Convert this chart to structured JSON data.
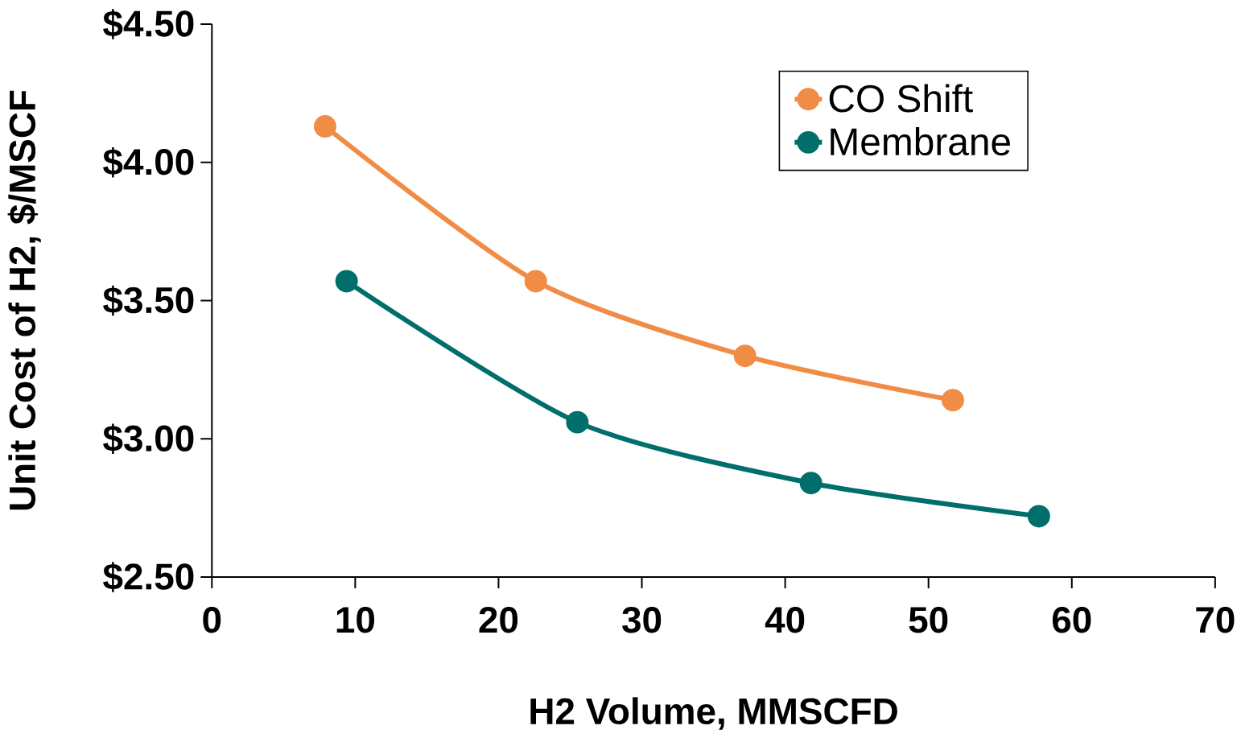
{
  "chart_data": {
    "type": "line",
    "xlabel": "H2 Volume, MMSCFD",
    "ylabel": "Unit Cost of H2, $/MSCF",
    "series": [
      {
        "name": "CO Shift",
        "color": "#f08c45",
        "x": [
          7.9,
          22.6,
          37.2,
          51.7
        ],
        "values": [
          4.13,
          3.57,
          3.3,
          3.14
        ]
      },
      {
        "name": "Membrane",
        "color": "#006e6a",
        "x": [
          9.4,
          25.5,
          41.8,
          57.7
        ],
        "values": [
          3.57,
          3.06,
          2.84,
          2.72
        ]
      }
    ],
    "xlim": [
      0,
      70
    ],
    "ylim": [
      2.5,
      4.5
    ],
    "xticks": [
      0,
      10,
      20,
      30,
      40,
      50,
      60,
      70
    ],
    "yticks": [
      {
        "value": 2.5,
        "label": "$2.50"
      },
      {
        "value": 3.0,
        "label": "$3.00"
      },
      {
        "value": 3.5,
        "label": "$3.50"
      },
      {
        "value": 4.0,
        "label": "$4.00"
      },
      {
        "value": 4.5,
        "label": "$4.50"
      }
    ],
    "legend": "top right",
    "marker": "circle",
    "line_style": "solid",
    "grid": false
  }
}
